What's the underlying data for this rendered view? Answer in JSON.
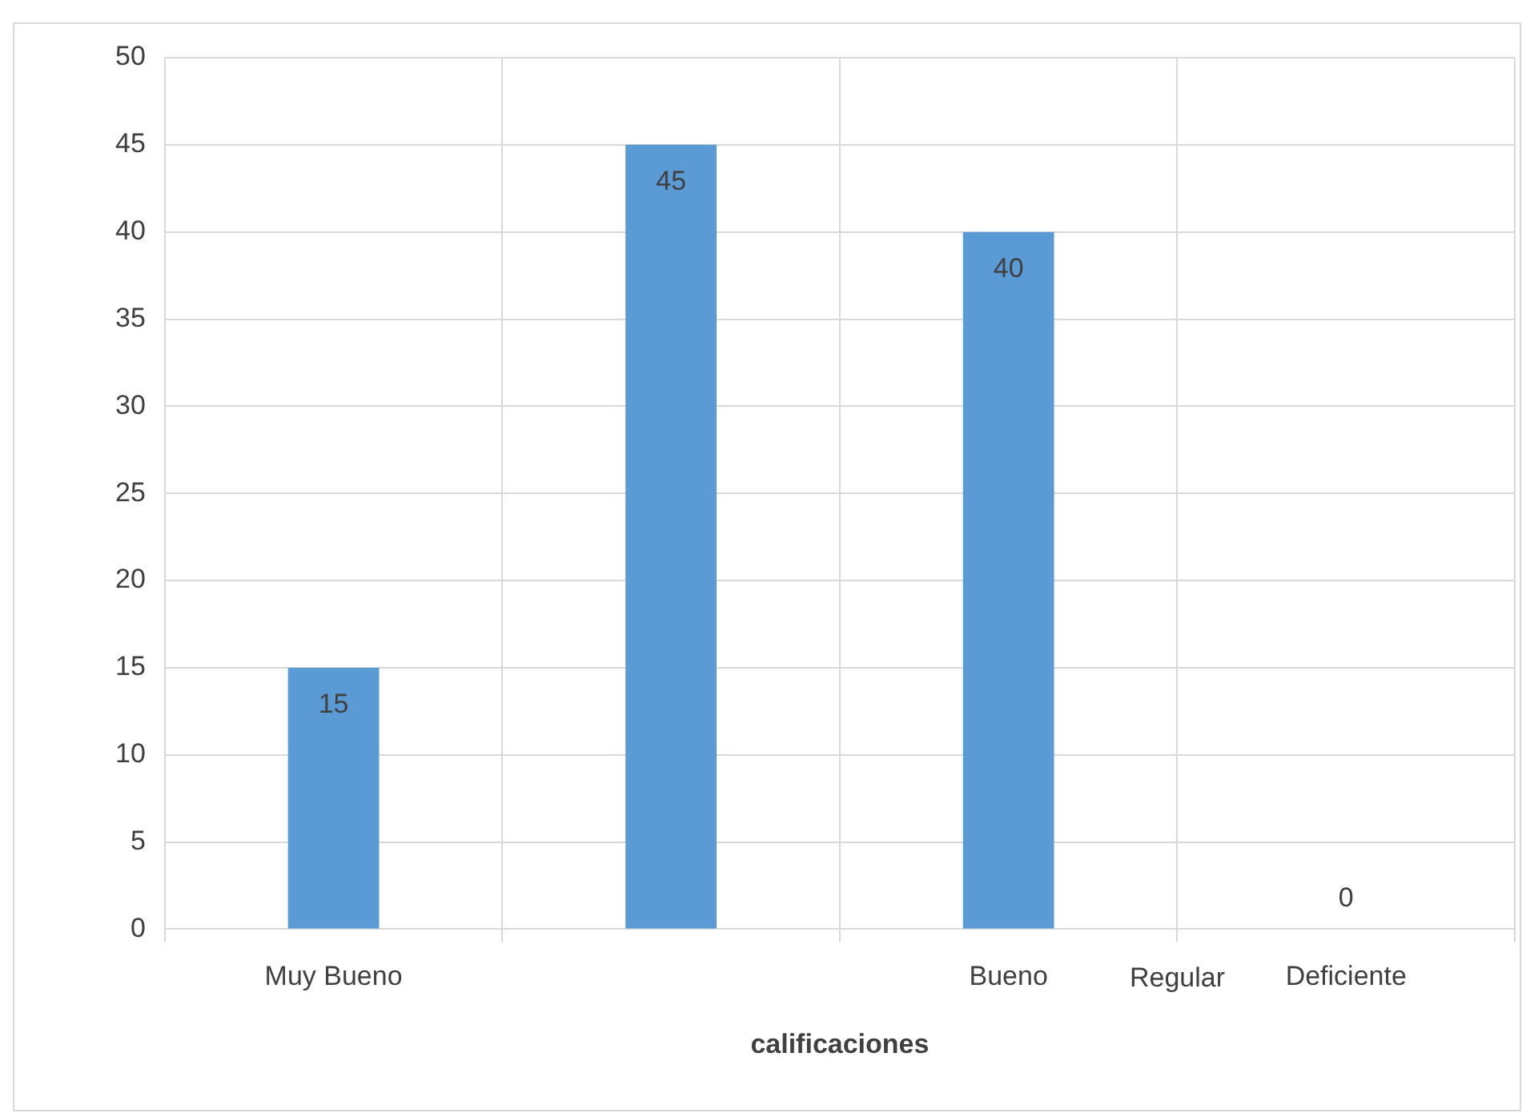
{
  "chart_data": {
    "type": "bar",
    "xlabel": "calificaciones",
    "categories": [
      "Muy Bueno",
      null,
      "Bueno",
      "Deficiente"
    ],
    "values": [
      15,
      45,
      40,
      0
    ],
    "color": "#5b9bd5",
    "ylim": [
      0,
      50
    ],
    "yticks": [
      0,
      5,
      10,
      15,
      20,
      25,
      30,
      35,
      40,
      45,
      50
    ],
    "grid": true,
    "data_labels": true,
    "legend": false,
    "annotations": [
      "Regular"
    ]
  }
}
